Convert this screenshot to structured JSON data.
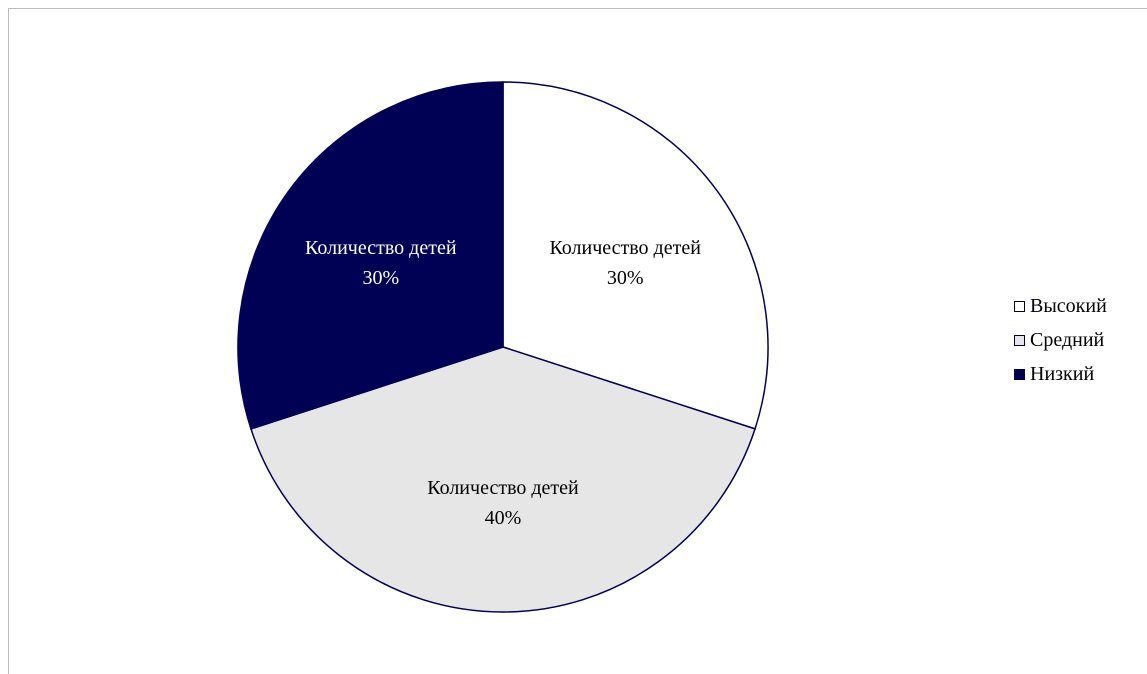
{
  "chart_data": {
    "type": "pie",
    "title": "",
    "series_name": "Количество детей",
    "slices": [
      {
        "category": "Высокий",
        "value": 30,
        "label": "Количество детей",
        "percent_label": "30%",
        "color": "#ffffff",
        "text_color": "#000000"
      },
      {
        "category": "Средний",
        "value": 40,
        "label": "Количество детей",
        "percent_label": "40%",
        "color": "#e6e6e6",
        "text_color": "#000000"
      },
      {
        "category": "Низкий",
        "value": 30,
        "label": "Количество детей",
        "percent_label": "30%",
        "color": "#000055",
        "text_color": "#ffffff"
      }
    ],
    "outline_color": "#000055",
    "legend_position": "right"
  }
}
